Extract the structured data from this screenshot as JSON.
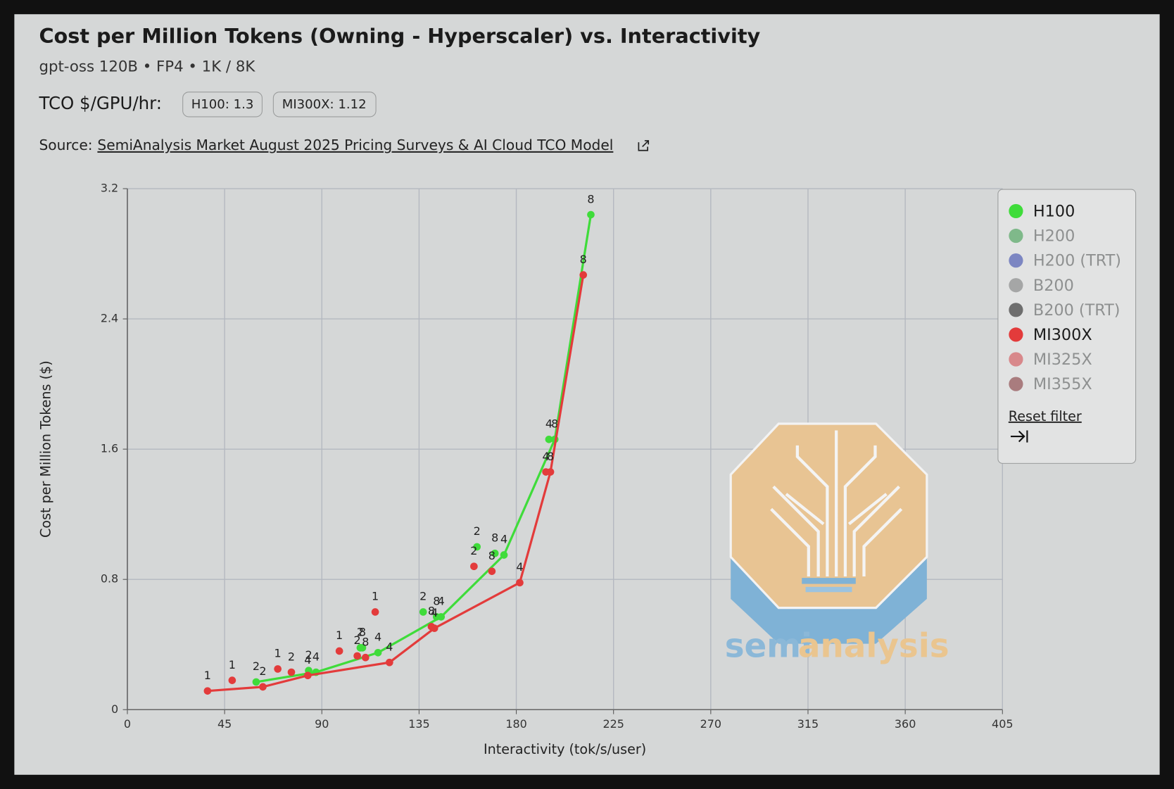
{
  "header": {
    "title": "Cost per Million Tokens (Owning - Hyperscaler) vs. Interactivity",
    "subtitle": "gpt-oss 120B • FP4 • 1K / 8K",
    "tco_label": "TCO $/GPU/hr:",
    "tco_chips": [
      "H100: 1.3",
      "MI300X: 1.12"
    ],
    "source_prefix": "Source:",
    "source_link": "SemiAnalysis Market August 2025 Pricing Surveys & AI Cloud TCO Model"
  },
  "chart_data": {
    "type": "scatter",
    "x_label": "Interactivity (tok/s/user)",
    "y_label": "Cost per Million Tokens ($)",
    "xlim": [
      0,
      405
    ],
    "xticks": [
      0,
      45,
      90,
      135,
      180,
      225,
      270,
      315,
      360,
      405
    ],
    "ylim": [
      0,
      3.2
    ],
    "yticks": [
      0,
      0.8,
      1.6,
      2.4,
      3.2
    ],
    "grid": true,
    "legend": "top-right",
    "series": [
      {
        "name": "H100",
        "color": "#3fdc3a",
        "active": true,
        "x": [
          59.6,
          83.9,
          87.3,
          107.8,
          108.8,
          116,
          136.9,
          143.1,
          145.2,
          161.8,
          170.1,
          174.3,
          195.1,
          197.8,
          214.5
        ],
        "values": [
          0.17,
          0.24,
          0.23,
          0.38,
          0.38,
          0.35,
          0.6,
          0.57,
          0.57,
          1.0,
          0.96,
          0.95,
          1.66,
          1.66,
          3.04
        ],
        "point_labels": [
          "2",
          "2",
          "4",
          "2",
          "8",
          "4",
          "2",
          "8",
          "4",
          "2",
          "8",
          "4",
          "4",
          "8",
          "8"
        ],
        "line": {
          "x": [
            59.6,
            87.3,
            116,
            145.2,
            174.3,
            197.8,
            214.5
          ],
          "values": [
            0.17,
            0.23,
            0.35,
            0.57,
            0.95,
            1.66,
            3.04
          ]
        }
      },
      {
        "name": "H200",
        "color": "#7fb98a",
        "active": false,
        "x": [],
        "values": [],
        "point_labels": []
      },
      {
        "name": "H200 (TRT)",
        "color": "#7c86c2",
        "active": false,
        "x": [],
        "values": [],
        "point_labels": []
      },
      {
        "name": "B200",
        "color": "#a5a6a6",
        "active": false,
        "x": [],
        "values": [],
        "point_labels": []
      },
      {
        "name": "B200 (TRT)",
        "color": "#6e6e6e",
        "active": false,
        "x": [],
        "values": [],
        "point_labels": []
      },
      {
        "name": "MI300X",
        "color": "#e33b3b",
        "active": true,
        "x": [
          37.1,
          48.5,
          62.7,
          69.6,
          75.9,
          83.5,
          98.1,
          106.4,
          110.2,
          114.7,
          121.3,
          140.7,
          142.1,
          160.4,
          168.7,
          181.6,
          193.7,
          195.8,
          211
        ],
        "values": [
          0.115,
          0.18,
          0.14,
          0.25,
          0.23,
          0.21,
          0.36,
          0.33,
          0.32,
          0.6,
          0.29,
          0.51,
          0.5,
          0.88,
          0.85,
          0.78,
          1.46,
          1.46,
          2.67
        ],
        "point_labels": [
          "1",
          "1",
          "2",
          "1",
          "2",
          "4",
          "1",
          "2",
          "8",
          "1",
          "4",
          "8",
          "4",
          "2",
          "8",
          "4",
          "4",
          "8",
          "8"
        ],
        "line": {
          "x": [
            37.1,
            62.7,
            83.5,
            121.3,
            142.1,
            181.6,
            195.8,
            211
          ],
          "values": [
            0.115,
            0.14,
            0.21,
            0.29,
            0.5,
            0.78,
            1.46,
            2.67
          ]
        }
      },
      {
        "name": "MI325X",
        "color": "#d8888b",
        "active": false,
        "x": [],
        "values": [],
        "point_labels": []
      },
      {
        "name": "MI355X",
        "color": "#a97c7e",
        "active": false,
        "x": [],
        "values": [],
        "point_labels": []
      }
    ],
    "reset_filter": "Reset filter"
  },
  "watermark": {
    "part1": "semi",
    "part2": "analysis"
  }
}
